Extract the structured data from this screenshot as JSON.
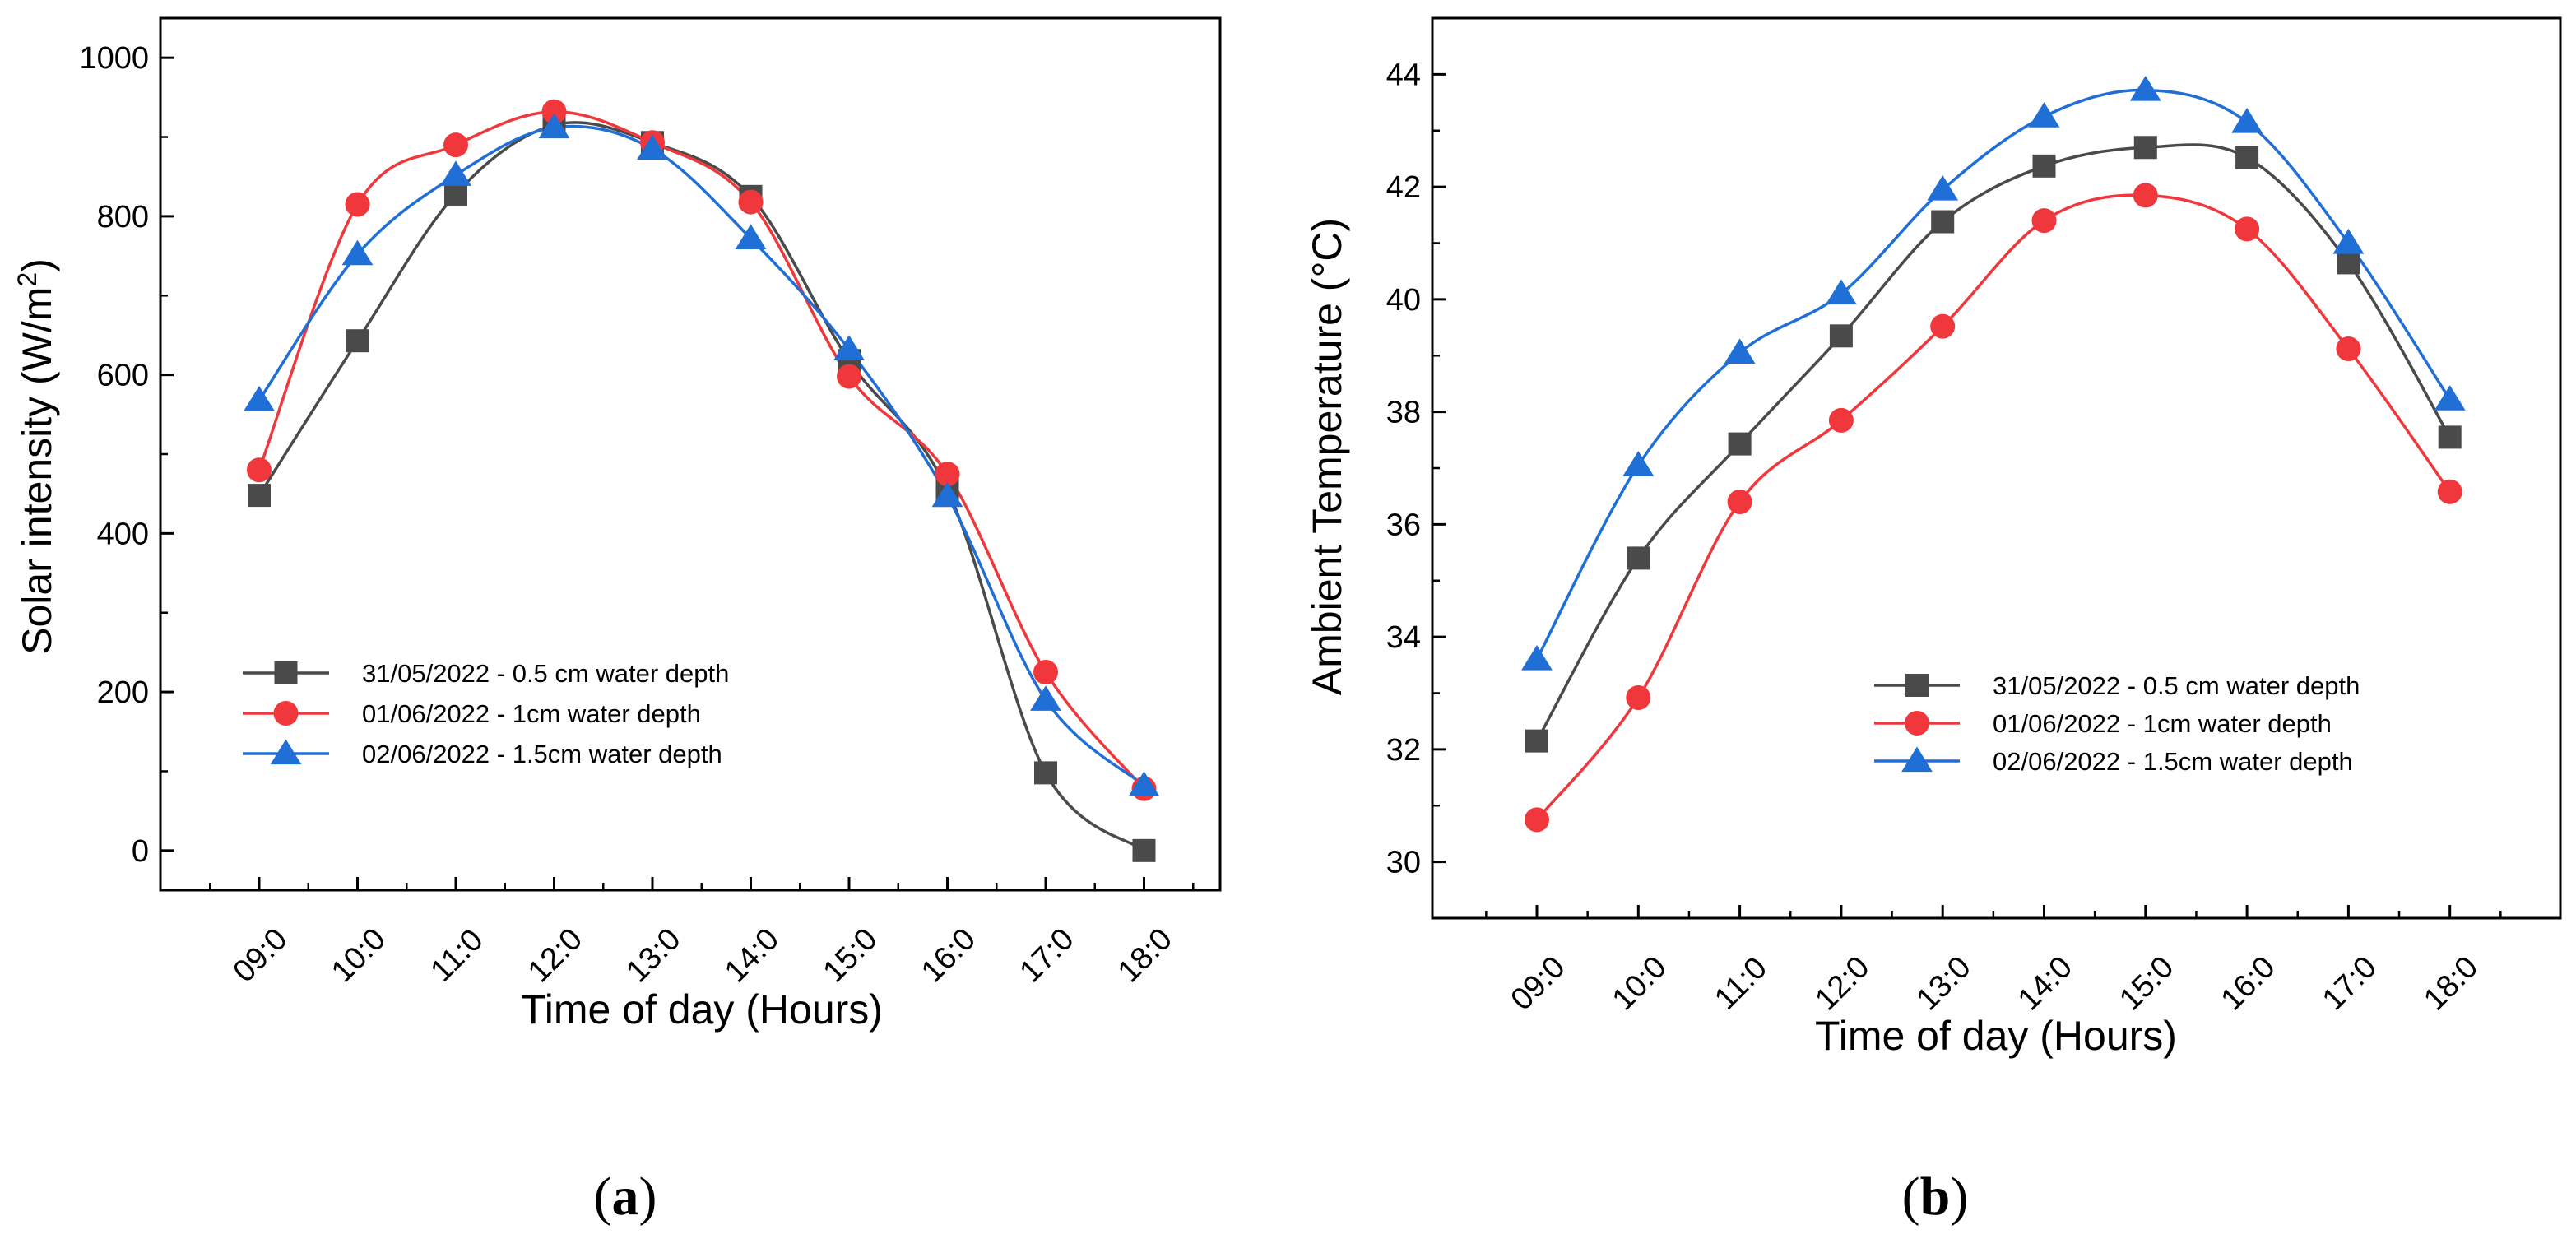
{
  "chart_data": [
    {
      "type": "line",
      "panel_label": "a",
      "xlabel": "Time of day (Hours)",
      "ylabel": "Solar intensity (W/m",
      "ylabel_sup": "2",
      "ylabel_close": ")",
      "categories": [
        "09:0",
        "10:0",
        "11:0",
        "12:0",
        "13:0",
        "14:0",
        "15:0",
        "16:0",
        "17:0",
        "18:0"
      ],
      "ylim": [
        -50,
        1050
      ],
      "yticks": [
        0,
        200,
        400,
        600,
        800,
        1000
      ],
      "ytick_labels": [
        "0",
        "200",
        "400",
        "600",
        "800",
        "1000"
      ],
      "legend_position": "lower-left",
      "series": [
        {
          "name": "31/05/2022 - 0.5 cm water depth",
          "marker": "square",
          "color": "#4a4a4a",
          "values": [
            448,
            643,
            828,
            915,
            893,
            825,
            618,
            455,
            98,
            0
          ]
        },
        {
          "name": "01/06/2022 - 1cm water depth",
          "marker": "circle",
          "color": "#f0383c",
          "values": [
            480,
            815,
            890,
            932,
            893,
            818,
            598,
            475,
            225,
            78
          ]
        },
        {
          "name": "02/06/2022 - 1.5cm water depth",
          "marker": "triangle",
          "color": "#1f6fd6",
          "values": [
            568,
            752,
            852,
            912,
            885,
            772,
            632,
            447,
            190,
            82
          ]
        }
      ]
    },
    {
      "type": "line",
      "panel_label": "b",
      "xlabel": "Time of day (Hours)",
      "ylabel": "Ambient Temperature (°C)",
      "categories": [
        "09:0",
        "10:0",
        "11:0",
        "12:0",
        "13:0",
        "14:0",
        "15:0",
        "16:0",
        "17:0",
        "18:0"
      ],
      "ylim": [
        29.0,
        45.0
      ],
      "yticks": [
        30,
        32,
        34,
        36,
        38,
        40,
        42,
        44
      ],
      "ytick_labels": [
        "30",
        "32",
        "34",
        "36",
        "38",
        "40",
        "42",
        "44"
      ],
      "legend_position": "lower-right",
      "series": [
        {
          "name": "31/05/2022 - 0.5 cm water depth",
          "marker": "square",
          "color": "#4a4a4a",
          "values": [
            32.15,
            35.4,
            37.43,
            39.35,
            41.38,
            42.37,
            42.7,
            42.52,
            40.65,
            37.55
          ]
        },
        {
          "name": "01/06/2022 - 1cm water depth",
          "marker": "circle",
          "color": "#f0383c",
          "values": [
            30.75,
            32.92,
            36.4,
            37.85,
            39.52,
            41.4,
            41.85,
            41.25,
            39.12,
            36.58
          ]
        },
        {
          "name": "02/06/2022 - 1.5cm water depth",
          "marker": "triangle",
          "color": "#1f6fd6",
          "values": [
            33.6,
            37.05,
            39.05,
            40.1,
            41.95,
            43.25,
            43.72,
            43.15,
            41.0,
            38.22
          ]
        }
      ]
    }
  ]
}
